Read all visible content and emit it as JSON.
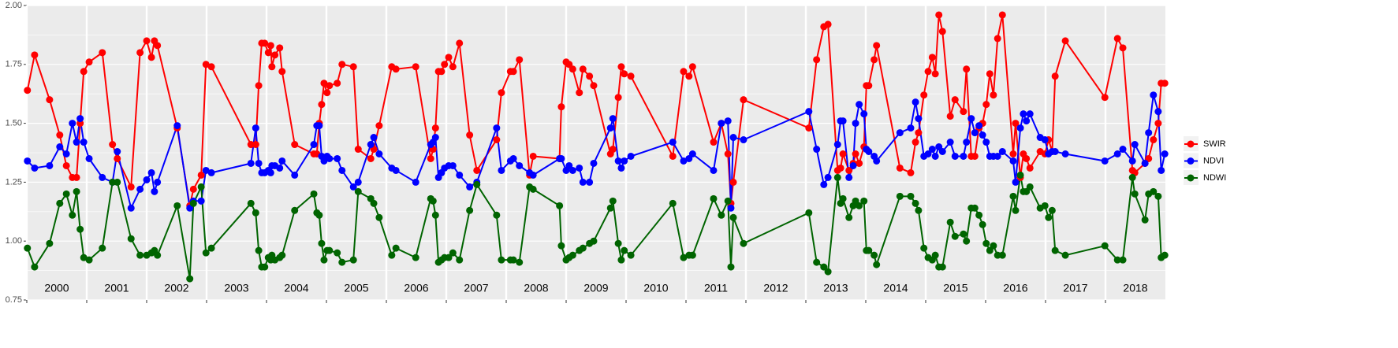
{
  "chart_data": {
    "type": "line",
    "x": [
      2000.01,
      2000.13,
      2000.38,
      2000.55,
      2000.66,
      2000.76,
      2000.83,
      2000.89,
      2000.95,
      2001.04,
      2001.26,
      2001.43,
      2001.51,
      2001.74,
      2001.89,
      2002.0,
      2002.08,
      2002.13,
      2002.18,
      2002.51,
      2002.72,
      2002.78,
      2002.91,
      2002.99,
      2003.08,
      2003.74,
      2003.82,
      2003.87,
      2003.92,
      2003.97,
      2004.03,
      2004.07,
      2004.09,
      2004.14,
      2004.22,
      2004.26,
      2004.47,
      2004.79,
      2004.84,
      2004.88,
      2004.92,
      2004.96,
      2005.01,
      2005.05,
      2005.18,
      2005.26,
      2005.45,
      2005.53,
      2005.74,
      2005.79,
      2005.88,
      2006.09,
      2006.16,
      2006.49,
      2006.74,
      2006.78,
      2006.82,
      2006.87,
      2006.92,
      2006.97,
      2007.04,
      2007.11,
      2007.22,
      2007.39,
      2007.51,
      2007.84,
      2007.92,
      2008.07,
      2008.12,
      2008.22,
      2008.39,
      2008.45,
      2008.89,
      2008.92,
      2009.0,
      2009.05,
      2009.11,
      2009.22,
      2009.28,
      2009.39,
      2009.46,
      2009.74,
      2009.78,
      2009.87,
      2009.92,
      2009.97,
      2010.08,
      2010.78,
      2010.96,
      2011.05,
      2011.11,
      2011.46,
      2011.59,
      2011.7,
      2011.75,
      2011.79,
      2011.96,
      2013.05,
      2013.18,
      2013.3,
      2013.37,
      2013.53,
      2013.58,
      2013.62,
      2013.72,
      2013.79,
      2013.83,
      2013.89,
      2013.97,
      2014.01,
      2014.05,
      2014.14,
      2014.18,
      2014.57,
      2014.75,
      2014.83,
      2014.88,
      2014.97,
      2015.04,
      2015.11,
      2015.16,
      2015.22,
      2015.28,
      2015.41,
      2015.49,
      2015.63,
      2015.68,
      2015.76,
      2015.82,
      2015.89,
      2015.95,
      2016.01,
      2016.07,
      2016.13,
      2016.2,
      2016.28,
      2016.46,
      2016.5,
      2016.58,
      2016.63,
      2016.68,
      2016.74,
      2016.91,
      2016.99,
      2017.05,
      2017.11,
      2017.16,
      2017.33,
      2017.99,
      2018.2,
      2018.29,
      2018.45,
      2018.49,
      2018.66,
      2018.72,
      2018.8,
      2018.88,
      2018.93,
      2018.99
    ],
    "series": [
      {
        "name": "SWIR",
        "color": "#ff0000",
        "values": [
          1.64,
          1.79,
          1.6,
          1.45,
          1.32,
          1.27,
          1.27,
          1.5,
          1.72,
          1.76,
          1.8,
          1.41,
          1.35,
          1.23,
          1.8,
          1.85,
          1.78,
          1.85,
          1.83,
          1.48,
          1.15,
          1.22,
          1.28,
          1.75,
          1.74,
          1.41,
          1.41,
          1.66,
          1.84,
          1.84,
          1.8,
          1.83,
          1.74,
          1.79,
          1.82,
          1.72,
          1.41,
          1.37,
          1.37,
          1.5,
          1.58,
          1.67,
          1.63,
          1.66,
          1.67,
          1.75,
          1.74,
          1.39,
          1.35,
          1.39,
          1.49,
          1.74,
          1.73,
          1.74,
          1.35,
          1.39,
          1.48,
          1.72,
          1.72,
          1.75,
          1.78,
          1.74,
          1.84,
          1.45,
          1.3,
          1.43,
          1.63,
          1.72,
          1.72,
          1.77,
          1.28,
          1.36,
          1.35,
          1.57,
          1.76,
          1.75,
          1.73,
          1.63,
          1.73,
          1.7,
          1.66,
          1.37,
          1.39,
          1.61,
          1.74,
          1.71,
          1.7,
          1.36,
          1.72,
          1.7,
          1.74,
          1.42,
          1.5,
          1.37,
          1.16,
          1.25,
          1.6,
          1.48,
          1.77,
          1.91,
          1.92,
          1.3,
          1.31,
          1.37,
          1.3,
          1.33,
          1.37,
          1.33,
          1.4,
          1.66,
          1.66,
          1.77,
          1.83,
          1.31,
          1.29,
          1.42,
          1.46,
          1.62,
          1.72,
          1.78,
          1.71,
          1.96,
          1.89,
          1.53,
          1.6,
          1.55,
          1.73,
          1.36,
          1.36,
          1.48,
          1.5,
          1.58,
          1.71,
          1.62,
          1.86,
          1.96,
          1.37,
          1.5,
          1.27,
          1.37,
          1.35,
          1.31,
          1.38,
          1.37,
          1.43,
          1.38,
          1.7,
          1.85,
          1.61,
          1.86,
          1.82,
          1.3,
          1.29,
          1.33,
          1.35,
          1.43,
          1.5,
          1.67,
          1.67
        ]
      },
      {
        "name": "NDVI",
        "color": "#0000ff",
        "values": [
          1.34,
          1.31,
          1.32,
          1.4,
          1.37,
          1.5,
          1.42,
          1.52,
          1.42,
          1.35,
          1.27,
          1.25,
          1.38,
          1.14,
          1.22,
          1.26,
          1.29,
          1.21,
          1.25,
          1.49,
          1.14,
          1.17,
          1.17,
          1.3,
          1.29,
          1.33,
          1.48,
          1.33,
          1.29,
          1.29,
          1.3,
          1.29,
          1.32,
          1.32,
          1.31,
          1.34,
          1.28,
          1.41,
          1.49,
          1.49,
          1.36,
          1.34,
          1.36,
          1.35,
          1.35,
          1.3,
          1.23,
          1.25,
          1.41,
          1.44,
          1.37,
          1.31,
          1.3,
          1.25,
          1.41,
          1.42,
          1.44,
          1.27,
          1.29,
          1.31,
          1.32,
          1.32,
          1.28,
          1.23,
          1.25,
          1.48,
          1.3,
          1.34,
          1.35,
          1.32,
          1.29,
          1.28,
          1.35,
          1.35,
          1.3,
          1.32,
          1.3,
          1.31,
          1.25,
          1.25,
          1.33,
          1.48,
          1.52,
          1.34,
          1.31,
          1.34,
          1.36,
          1.42,
          1.34,
          1.35,
          1.37,
          1.3,
          1.5,
          1.51,
          1.14,
          1.44,
          1.43,
          1.55,
          1.39,
          1.24,
          1.27,
          1.41,
          1.51,
          1.51,
          1.27,
          1.32,
          1.5,
          1.58,
          1.54,
          1.39,
          1.38,
          1.36,
          1.34,
          1.46,
          1.48,
          1.59,
          1.52,
          1.36,
          1.37,
          1.39,
          1.36,
          1.4,
          1.38,
          1.42,
          1.36,
          1.36,
          1.42,
          1.52,
          1.46,
          1.49,
          1.45,
          1.42,
          1.36,
          1.36,
          1.36,
          1.38,
          1.34,
          1.25,
          1.48,
          1.54,
          1.51,
          1.54,
          1.44,
          1.43,
          1.37,
          1.38,
          1.38,
          1.37,
          1.34,
          1.37,
          1.39,
          1.34,
          1.41,
          1.33,
          1.46,
          1.62,
          1.55,
          1.3,
          1.37
        ]
      },
      {
        "name": "NDWI",
        "color": "#006400",
        "values": [
          0.97,
          0.89,
          0.99,
          1.16,
          1.2,
          1.11,
          1.21,
          1.05,
          0.93,
          0.92,
          0.97,
          1.25,
          1.25,
          1.01,
          0.94,
          0.94,
          0.95,
          0.96,
          0.94,
          1.15,
          0.84,
          1.16,
          1.23,
          0.95,
          0.97,
          1.16,
          1.12,
          0.96,
          0.89,
          0.89,
          0.93,
          0.92,
          0.94,
          0.92,
          0.93,
          0.94,
          1.13,
          1.2,
          1.12,
          1.11,
          0.99,
          0.92,
          0.96,
          0.96,
          0.95,
          0.91,
          0.92,
          1.21,
          1.18,
          1.16,
          1.1,
          0.94,
          0.97,
          0.93,
          1.18,
          1.17,
          1.11,
          0.91,
          0.92,
          0.93,
          0.93,
          0.95,
          0.92,
          1.13,
          1.24,
          1.11,
          0.92,
          0.92,
          0.92,
          0.91,
          1.23,
          1.22,
          1.15,
          0.98,
          0.92,
          0.93,
          0.94,
          0.96,
          0.97,
          0.99,
          1.0,
          1.14,
          1.17,
          0.99,
          0.92,
          0.96,
          0.94,
          1.16,
          0.93,
          0.94,
          0.94,
          1.18,
          1.11,
          1.17,
          0.89,
          1.1,
          0.99,
          1.12,
          0.91,
          0.89,
          0.87,
          1.27,
          1.16,
          1.18,
          1.1,
          1.15,
          1.17,
          1.15,
          1.17,
          0.96,
          0.96,
          0.94,
          0.9,
          1.19,
          1.19,
          1.16,
          1.13,
          0.97,
          0.93,
          0.92,
          0.94,
          0.89,
          0.89,
          1.08,
          1.02,
          1.03,
          1.0,
          1.14,
          1.14,
          1.11,
          1.07,
          0.99,
          0.96,
          0.98,
          0.94,
          0.94,
          1.19,
          1.13,
          1.28,
          1.21,
          1.21,
          1.23,
          1.14,
          1.15,
          1.1,
          1.13,
          0.96,
          0.94,
          0.98,
          0.92,
          0.92,
          1.27,
          1.2,
          1.09,
          1.2,
          1.21,
          1.19,
          0.93,
          0.94
        ]
      }
    ],
    "xlim": [
      2000,
      2019
    ],
    "xticks": [
      2000,
      2001,
      2002,
      2003,
      2004,
      2005,
      2006,
      2007,
      2008,
      2009,
      2010,
      2011,
      2012,
      2013,
      2014,
      2015,
      2016,
      2017,
      2018
    ],
    "ylim": [
      0.75,
      2
    ],
    "yticks": [
      0.75,
      {
        "value": 1,
        "label": "1.00"
      },
      1.25,
      {
        "value": 1.5,
        "label": "1.50"
      },
      1.75,
      {
        "value": 2,
        "label": "2.00"
      }
    ],
    "grid": true,
    "legend": "right"
  }
}
